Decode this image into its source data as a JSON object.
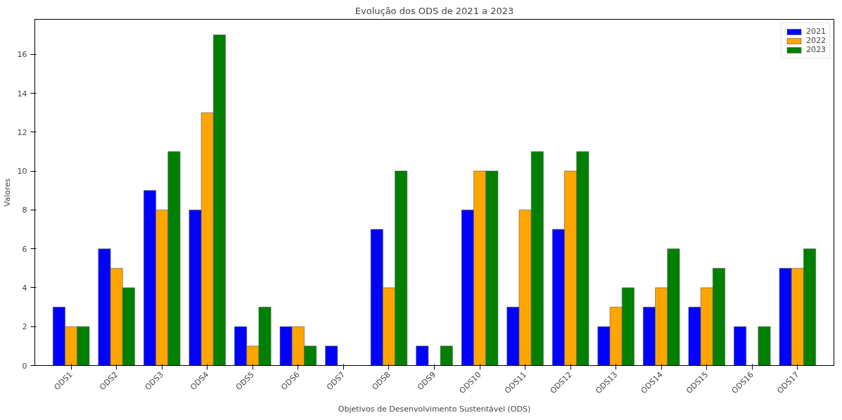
{
  "chart_data": {
    "type": "bar",
    "title": "Evolução dos ODS de 2021 a 2023",
    "xlabel": "Objetivos de Desenvolvimento Sustentável (ODS)",
    "ylabel": "Valores",
    "categories": [
      "ODS1",
      "ODS2",
      "ODS3",
      "ODS4",
      "ODS5",
      "ODS6",
      "ODS7",
      "ODS8",
      "ODS9",
      "ODS10",
      "ODS11",
      "ODS12",
      "ODS13",
      "ODS14",
      "ODS15",
      "ODS16",
      "ODS17"
    ],
    "series": [
      {
        "name": "2021",
        "color": "#0000ff",
        "values": [
          3,
          6,
          9,
          8,
          2,
          2,
          1,
          7,
          1,
          8,
          3,
          7,
          2,
          3,
          3,
          2,
          5
        ]
      },
      {
        "name": "2022",
        "color": "#ffa500",
        "values": [
          2,
          5,
          8,
          13,
          1,
          2,
          0,
          4,
          0,
          10,
          8,
          10,
          3,
          4,
          4,
          0,
          5
        ]
      },
      {
        "name": "2023",
        "color": "#008000",
        "values": [
          2,
          4,
          11,
          17,
          3,
          1,
          0,
          10,
          1,
          10,
          11,
          11,
          4,
          6,
          5,
          2,
          6
        ]
      }
    ],
    "ylim": [
      0,
      17.8
    ],
    "yticks": [
      0,
      2,
      4,
      6,
      8,
      10,
      12,
      14,
      16
    ],
    "grid": false,
    "legend": "top right"
  }
}
